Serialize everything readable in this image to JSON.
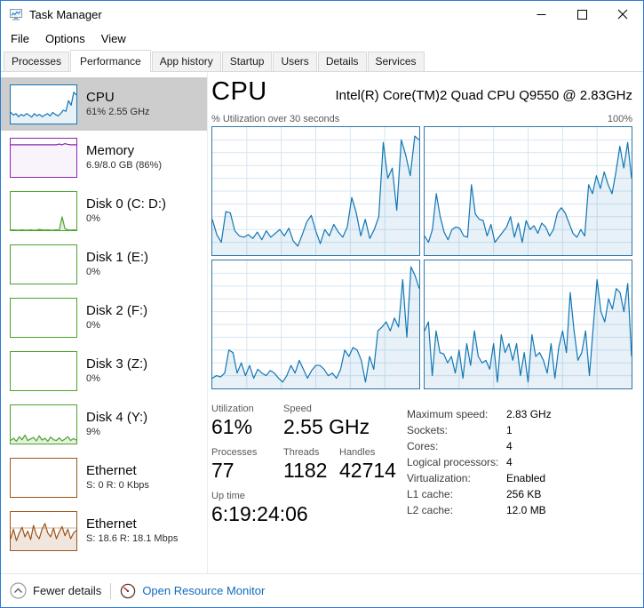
{
  "window": {
    "title": "Task Manager"
  },
  "menu": {
    "file": "File",
    "options": "Options",
    "view": "View"
  },
  "tabs": {
    "processes": "Processes",
    "performance": "Performance",
    "app_history": "App history",
    "startup": "Startup",
    "users": "Users",
    "details": "Details",
    "services": "Services"
  },
  "sidebar": {
    "items": [
      {
        "title": "CPU",
        "subtitle": "61% 2.55 GHz",
        "selected": true
      },
      {
        "title": "Memory",
        "subtitle": "6.9/8.0 GB (86%)"
      },
      {
        "title": "Disk 0 (C: D:)",
        "subtitle": "0%"
      },
      {
        "title": "Disk 1 (E:)",
        "subtitle": "0%"
      },
      {
        "title": "Disk 2 (F:)",
        "subtitle": "0%"
      },
      {
        "title": "Disk 3 (Z:)",
        "subtitle": "0%"
      },
      {
        "title": "Disk 4 (Y:)",
        "subtitle": "9%"
      },
      {
        "title": "Ethernet",
        "subtitle": "S: 0 R: 0 Kbps"
      },
      {
        "title": "Ethernet",
        "subtitle": "S: 18.6 R: 18.1 Mbps"
      }
    ]
  },
  "main": {
    "title": "CPU",
    "cpu_name": "Intel(R) Core(TM)2 Quad CPU Q9550 @ 2.83GHz",
    "graph_label": "% Utilization over 30 seconds",
    "graph_max": "100%",
    "stats": {
      "utilization_label": "Utilization",
      "utilization": "61%",
      "speed_label": "Speed",
      "speed": "2.55 GHz",
      "processes_label": "Processes",
      "processes": "77",
      "threads_label": "Threads",
      "threads": "1182",
      "handles_label": "Handles",
      "handles": "42714",
      "uptime_label": "Up time",
      "uptime": "6:19:24:06"
    },
    "details": [
      {
        "label": "Maximum speed:",
        "value": "2.83 GHz"
      },
      {
        "label": "Sockets:",
        "value": "1"
      },
      {
        "label": "Cores:",
        "value": "4"
      },
      {
        "label": "Logical processors:",
        "value": "4"
      },
      {
        "label": "Virtualization:",
        "value": "Enabled"
      },
      {
        "label": "L1 cache:",
        "value": "256 KB"
      },
      {
        "label": "L2 cache:",
        "value": "12.0 MB"
      }
    ]
  },
  "footer": {
    "fewer_details": "Fewer details",
    "open_resource_monitor": "Open Resource Monitor"
  },
  "colors": {
    "window_border": "#2b7cd3",
    "cpu_line": "#1176b5",
    "memory_line": "#8f23b3",
    "disk_line": "#4ba32b",
    "ethernet_line": "#9c5518",
    "chart_border": "#3178a9",
    "grid": "#d6e5f2",
    "selected_bg": "#cdcdcd",
    "link": "#0f6cbd"
  },
  "chart_data": {
    "type": "area",
    "title": "% Utilization over 30 seconds",
    "ylim": [
      0,
      100
    ],
    "grid": true,
    "series_note": "four logical-processor utilization graphs, 30 second window",
    "charts": {
      "core0": {
        "grid": true,
        "stroke": "#1176b5",
        "fill": "rgba(17,118,181,0.10)",
        "values": [
          28,
          16,
          10,
          34,
          33,
          19,
          15,
          14,
          16,
          13,
          18,
          12,
          19,
          14,
          17,
          20,
          15,
          21,
          11,
          7,
          16,
          26,
          31,
          19,
          9,
          20,
          15,
          24,
          18,
          14,
          22,
          45,
          33,
          15,
          28,
          13,
          20,
          30,
          88,
          60,
          68,
          35,
          90,
          78,
          62,
          93,
          90
        ]
      },
      "core1": {
        "grid": true,
        "stroke": "#1176b5",
        "fill": "rgba(17,118,181,0.10)",
        "values": [
          15,
          10,
          20,
          48,
          30,
          18,
          12,
          20,
          22,
          21,
          15,
          14,
          55,
          32,
          28,
          27,
          15,
          24,
          10,
          14,
          18,
          22,
          30,
          14,
          25,
          10,
          27,
          20,
          23,
          17,
          25,
          22,
          15,
          20,
          33,
          37,
          33,
          25,
          17,
          14,
          20,
          15,
          55,
          48,
          62,
          52,
          65,
          55,
          48,
          65,
          85,
          68,
          88,
          60
        ]
      },
      "core2": {
        "grid": true,
        "stroke": "#1176b5",
        "fill": "rgba(17,118,181,0.10)",
        "values": [
          8,
          10,
          9,
          12,
          30,
          28,
          12,
          20,
          10,
          18,
          8,
          15,
          12,
          10,
          14,
          12,
          8,
          5,
          10,
          18,
          12,
          22,
          15,
          8,
          14,
          18,
          18,
          15,
          10,
          12,
          8,
          15,
          30,
          25,
          32,
          30,
          22,
          5,
          25,
          15,
          45,
          48,
          52,
          45,
          55,
          48,
          85,
          40,
          95,
          88,
          78
        ]
      },
      "core3": {
        "grid": true,
        "stroke": "#1176b5",
        "fill": "rgba(17,118,181,0.10)",
        "values": [
          45,
          52,
          10,
          45,
          28,
          27,
          20,
          25,
          12,
          30,
          8,
          35,
          18,
          45,
          25,
          20,
          22,
          15,
          35,
          5,
          42,
          28,
          35,
          22,
          35,
          10,
          28,
          5,
          42,
          25,
          28,
          22,
          12,
          35,
          8,
          32,
          45,
          28,
          75,
          45,
          22,
          28,
          45,
          10,
          48,
          85,
          60,
          52,
          70,
          62,
          78,
          75,
          60,
          82,
          25
        ]
      },
      "cpu_thumb": {
        "stroke": "#1176b5",
        "fill": "rgba(17,118,181,0.10)",
        "values": [
          30,
          22,
          26,
          18,
          24,
          20,
          26,
          22,
          17,
          26,
          20,
          24,
          18,
          22,
          26,
          20,
          29,
          24,
          20,
          26,
          35,
          32,
          60,
          48,
          82,
          75
        ]
      },
      "memory_thumb": {
        "stroke": "#8f23b3",
        "fill": "rgba(143,35,179,0.05)",
        "values": [
          84,
          84,
          84,
          84,
          84,
          84,
          84,
          84,
          84,
          84,
          84,
          84,
          84,
          84,
          84,
          84,
          84,
          86,
          84,
          87,
          85,
          84,
          84,
          84
        ]
      },
      "disk0_thumb": {
        "stroke": "#4ba32b",
        "fill": "rgba(75,163,43,0.15)",
        "values": [
          0,
          1,
          0,
          0,
          1,
          0,
          0,
          1,
          0,
          0,
          2,
          1,
          0,
          1,
          0,
          0,
          1,
          0,
          35,
          4,
          1,
          0,
          1,
          0
        ]
      },
      "disk4_thumb": {
        "stroke": "#4ba32b",
        "fill": "rgba(75,163,43,0.15)",
        "values": [
          8,
          14,
          6,
          18,
          10,
          22,
          8,
          12,
          16,
          7,
          20,
          9,
          14,
          6,
          17,
          10,
          8,
          15,
          7,
          12,
          18,
          8,
          13,
          9
        ]
      },
      "eth2_thumb": {
        "stroke": "#9c5518",
        "fill": "rgba(156,85,24,0.15)",
        "hline": 42,
        "values": [
          30,
          55,
          25,
          45,
          60,
          35,
          50,
          28,
          65,
          40,
          30,
          55,
          70,
          45,
          35,
          58,
          30,
          48,
          62,
          38,
          55,
          30,
          45,
          52
        ]
      }
    }
  }
}
